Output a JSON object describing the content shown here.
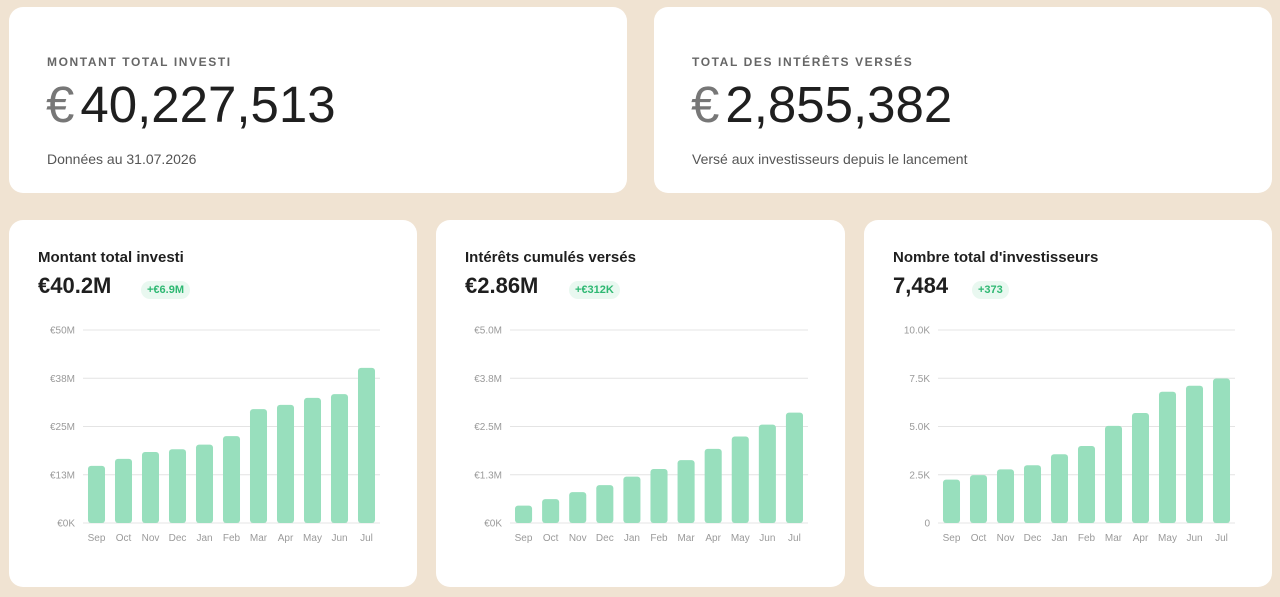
{
  "top_cards": [
    {
      "label": "MONTANT TOTAL INVESTI",
      "currency": "€",
      "value": "40,227,513",
      "sub": "Données au 31.07.2026"
    },
    {
      "label": "TOTAL DES INTÉRÊTS VERSÉS",
      "currency": "€",
      "value": "2,855,382",
      "sub": "Versé aux investisseurs depuis le lancement"
    }
  ],
  "colors": {
    "background": "#f0e3d2",
    "bar": "#98dfbd",
    "badge_text": "#2eb872",
    "badge_bg": "#e9f8f0"
  },
  "chart_data": [
    {
      "type": "bar",
      "title": "Montant total investi",
      "headline": "€40.2M",
      "delta": "+€6.9M",
      "categories": [
        "Sep",
        "Oct",
        "Nov",
        "Dec",
        "Jan",
        "Feb",
        "Mar",
        "Apr",
        "May",
        "Jun",
        "Jul"
      ],
      "values": [
        14.8,
        16.6,
        18.4,
        19.1,
        20.3,
        22.5,
        29.5,
        30.6,
        32.4,
        33.4,
        40.2
      ],
      "ylim": [
        0,
        50
      ],
      "yticks": [
        0,
        12.5,
        25,
        37.5,
        50
      ],
      "ytick_labels": [
        "€0K",
        "€13M",
        "€25M",
        "€38M",
        "€50M"
      ],
      "grid": true
    },
    {
      "type": "bar",
      "title": "Intérêts cumulés versés",
      "headline": "€2.86M",
      "delta": "+€312K",
      "categories": [
        "Sep",
        "Oct",
        "Nov",
        "Dec",
        "Jan",
        "Feb",
        "Mar",
        "Apr",
        "May",
        "Jun",
        "Jul"
      ],
      "values": [
        0.45,
        0.62,
        0.8,
        0.98,
        1.2,
        1.4,
        1.63,
        1.92,
        2.24,
        2.55,
        2.86
      ],
      "ylim": [
        0,
        5
      ],
      "yticks": [
        0,
        1.25,
        2.5,
        3.75,
        5
      ],
      "ytick_labels": [
        "€0K",
        "€1.3M",
        "€2.5M",
        "€3.8M",
        "€5.0M"
      ],
      "grid": true
    },
    {
      "type": "bar",
      "title": "Nombre total d'investisseurs",
      "headline": "7,484",
      "delta": "+373",
      "categories": [
        "Sep",
        "Oct",
        "Nov",
        "Dec",
        "Jan",
        "Feb",
        "Mar",
        "Apr",
        "May",
        "Jun",
        "Jul"
      ],
      "values": [
        2250,
        2480,
        2780,
        2990,
        3560,
        3990,
        5030,
        5700,
        6800,
        7110,
        7484
      ],
      "ylim": [
        0,
        10000
      ],
      "yticks": [
        0,
        2500,
        5000,
        7500,
        10000
      ],
      "ytick_labels": [
        "0",
        "2.5K",
        "5.0K",
        "7.5K",
        "10.0K"
      ],
      "grid": true
    }
  ]
}
